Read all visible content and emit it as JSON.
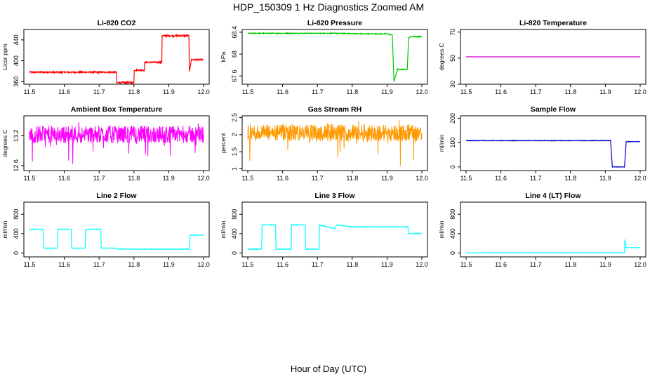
{
  "title": "HDP_150309  1 Hz Diagnostics Zoomed AM",
  "x_label": "Hour of Day (UTC)",
  "chart_data": [
    {
      "type": "line",
      "title": "Li-820 CO2",
      "ylabel": "Licor ppm",
      "color": "#ff0000",
      "x_ticks": [
        "11.5",
        "11.6",
        "11.7",
        "11.8",
        "11.9",
        "12.0"
      ],
      "xlim": [
        11.5,
        12.0
      ],
      "y_ticks": [
        360,
        400,
        440
      ],
      "ylim": [
        355,
        460
      ],
      "noise": 1.5,
      "series": [
        {
          "x": [
            11.5,
            11.75,
            11.751,
            11.8,
            11.801,
            11.83,
            11.831,
            11.88,
            11.881,
            11.958,
            11.959,
            11.965,
            12.0
          ],
          "values": [
            378,
            378,
            358,
            358,
            382,
            382,
            397,
            397,
            448,
            448,
            378,
            402,
            402
          ]
        }
      ]
    },
    {
      "type": "line",
      "title": "Li-820 Pressure",
      "ylabel": "kPa",
      "color": "#00cc00",
      "x_ticks": [
        "11.5",
        "11.6",
        "11.7",
        "11.8",
        "11.9",
        "12.0"
      ],
      "xlim": [
        11.5,
        12.0
      ],
      "y_ticks": [
        67.6,
        68.0,
        68.4
      ],
      "ylim": [
        67.45,
        68.45
      ],
      "noise": 0.008,
      "series": [
        {
          "x": [
            11.5,
            11.75,
            11.85,
            11.9,
            11.915,
            11.92,
            11.93,
            11.958,
            11.962,
            11.97,
            12.0
          ],
          "values": [
            68.38,
            68.38,
            68.37,
            68.37,
            68.35,
            67.5,
            67.72,
            67.72,
            68.3,
            68.32,
            68.32
          ]
        }
      ]
    },
    {
      "type": "line",
      "title": "Li-820 Temperature",
      "ylabel": "degrees C",
      "color": "#cc00cc",
      "x_ticks": [
        "11.5",
        "11.6",
        "11.7",
        "11.8",
        "11.9",
        "12.0"
      ],
      "xlim": [
        11.5,
        12.0
      ],
      "y_ticks": [
        30,
        50,
        70
      ],
      "ylim": [
        30,
        72
      ],
      "noise": 0,
      "series": [
        {
          "x": [
            11.5,
            12.0
          ],
          "values": [
            51,
            51
          ]
        }
      ]
    },
    {
      "type": "line",
      "title": "Ambient Box Temperature",
      "ylabel": "degrees C",
      "color": "#ff00ff",
      "x_ticks": [
        "11.5",
        "11.6",
        "11.7",
        "11.8",
        "11.9",
        "12.0"
      ],
      "xlim": [
        11.5,
        12.0
      ],
      "y_ticks": [
        12.6,
        13.2
      ],
      "ylim": [
        12.5,
        13.6
      ],
      "noise": 0.12,
      "band": [
        13.05,
        13.4
      ],
      "series": [
        {
          "x": [
            11.5,
            12.0
          ],
          "values": [
            13.22,
            13.22
          ]
        }
      ]
    },
    {
      "type": "line",
      "title": "Gas Stream RH",
      "ylabel": "percent",
      "color": "#ff9900",
      "x_ticks": [
        "11.5",
        "11.6",
        "11.7",
        "11.8",
        "11.9",
        "12.0"
      ],
      "xlim": [
        11.5,
        12.0
      ],
      "y_ticks": [
        1.0,
        1.5,
        2.0,
        2.5
      ],
      "ylim": [
        0.95,
        2.55
      ],
      "noise": 0.1,
      "band": [
        1.8,
        2.3
      ],
      "series": [
        {
          "x": [
            11.5,
            12.0
          ],
          "values": [
            2.05,
            2.05
          ]
        }
      ]
    },
    {
      "type": "line",
      "title": "Sample Flow",
      "ylabel": "ml/min",
      "color": "#0000cc",
      "x_ticks": [
        "11.5",
        "11.6",
        "11.7",
        "11.8",
        "11.9",
        "12.0"
      ],
      "xlim": [
        11.5,
        12.0
      ],
      "y_ticks": [
        0,
        100,
        200
      ],
      "ylim": [
        -15,
        210
      ],
      "noise": 1,
      "series": [
        {
          "x": [
            11.5,
            11.915,
            11.92,
            11.955,
            11.96,
            12.0
          ],
          "values": [
            108,
            108,
            0,
            0,
            104,
            104
          ]
        }
      ]
    },
    {
      "type": "line",
      "title": "Line 2 Flow",
      "ylabel": "ml/min",
      "color": "#00ffff",
      "x_ticks": [
        "11.5",
        "11.6",
        "11.7",
        "11.8",
        "11.9",
        "12.0"
      ],
      "xlim": [
        11.5,
        12.0
      ],
      "y_ticks": [
        0,
        400,
        800
      ],
      "ylim": [
        -80,
        1050
      ],
      "noise": 5,
      "series": [
        {
          "x": [
            11.5,
            11.54,
            11.541,
            11.58,
            11.581,
            11.62,
            11.621,
            11.66,
            11.661,
            11.705,
            11.706,
            11.75,
            11.751,
            11.96,
            11.961,
            12.0
          ],
          "values": [
            490,
            490,
            100,
            100,
            490,
            490,
            100,
            100,
            490,
            490,
            100,
            100,
            80,
            80,
            370,
            370
          ]
        }
      ]
    },
    {
      "type": "line",
      "title": "Line 3 Flow",
      "ylabel": "ml/min",
      "color": "#00ffff",
      "x_ticks": [
        "11.5",
        "11.6",
        "11.7",
        "11.8",
        "11.9",
        "12.0"
      ],
      "xlim": [
        11.5,
        12.0
      ],
      "y_ticks": [
        0,
        400,
        800
      ],
      "ylim": [
        -80,
        1050
      ],
      "noise": 6,
      "series": [
        {
          "x": [
            11.5,
            11.54,
            11.541,
            11.58,
            11.581,
            11.625,
            11.626,
            11.665,
            11.666,
            11.705,
            11.706,
            11.75,
            11.755,
            11.8,
            11.96,
            11.961,
            12.0
          ],
          "values": [
            80,
            80,
            580,
            580,
            80,
            80,
            580,
            580,
            80,
            80,
            580,
            500,
            580,
            540,
            540,
            400,
            400
          ]
        }
      ]
    },
    {
      "type": "line",
      "title": "Line 4 (LT) Flow",
      "ylabel": "ml/min",
      "color": "#00ffff",
      "x_ticks": [
        "11.5",
        "11.6",
        "11.7",
        "11.8",
        "11.9",
        "12.0"
      ],
      "xlim": [
        11.5,
        12.0
      ],
      "y_ticks": [
        0,
        400,
        800
      ],
      "ylim": [
        -80,
        1050
      ],
      "noise": 1,
      "series": [
        {
          "x": [
            11.5,
            11.955,
            11.956,
            11.96,
            11.961,
            12.0
          ],
          "values": [
            5,
            5,
            280,
            110,
            110,
            110
          ]
        }
      ]
    }
  ]
}
